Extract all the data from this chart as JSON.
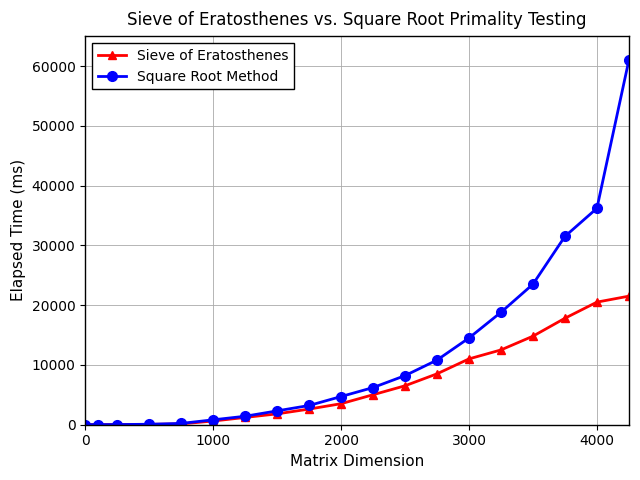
{
  "title": "Sieve of Eratosthenes vs. Square Root Primality Testing",
  "xlabel": "Matrix Dimension",
  "ylabel": "Elapsed Time (ms)",
  "sieve_x": [
    0,
    100,
    250,
    500,
    750,
    1000,
    1250,
    1500,
    1750,
    2000,
    2250,
    2500,
    2750,
    3000,
    3250,
    3500,
    3750,
    4000,
    4250
  ],
  "sieve_y": [
    0,
    0,
    10,
    40,
    120,
    600,
    1200,
    1800,
    2600,
    3500,
    5000,
    6500,
    8500,
    11000,
    12500,
    14800,
    17800,
    20500,
    21500
  ],
  "sqrt_x": [
    0,
    100,
    250,
    500,
    750,
    1000,
    1250,
    1500,
    1750,
    2000,
    2250,
    2500,
    2750,
    3000,
    3250,
    3500,
    3750,
    4000,
    4250
  ],
  "sqrt_y": [
    0,
    0,
    10,
    60,
    200,
    800,
    1400,
    2300,
    3200,
    4700,
    6200,
    8200,
    10800,
    14500,
    18800,
    23500,
    31500,
    36200,
    61000
  ],
  "sieve_color": "red",
  "sqrt_color": "blue",
  "sieve_label": "Sieve of Eratosthenes",
  "sqrt_label": "Square Root Method",
  "sieve_marker": "^",
  "sqrt_marker": "o",
  "xlim": [
    0,
    4250
  ],
  "ylim": [
    0,
    65000
  ],
  "xticks": [
    0,
    1000,
    2000,
    3000,
    4000
  ],
  "yticks": [
    0,
    10000,
    20000,
    30000,
    40000,
    50000,
    60000
  ],
  "grid_color": "#aaaaaa",
  "bg_color": "white",
  "title_fontsize": 12,
  "label_fontsize": 11,
  "tick_fontsize": 10,
  "legend_fontsize": 10,
  "linewidth": 2,
  "markersize_sieve": 6,
  "markersize_sqrt": 7
}
